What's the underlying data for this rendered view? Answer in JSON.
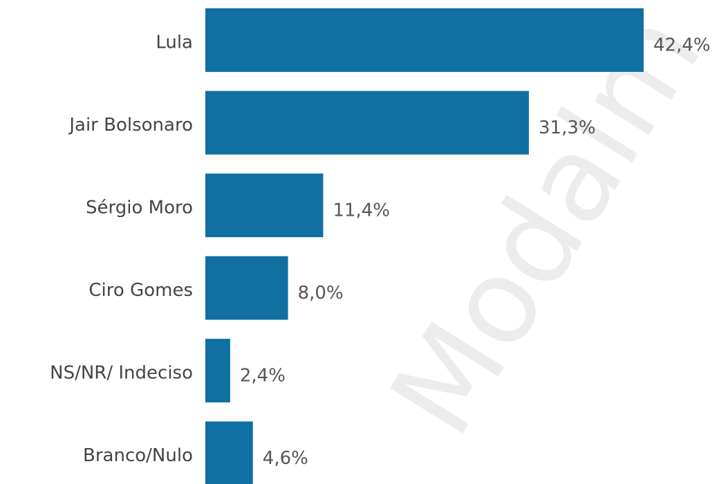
{
  "chart_data": {
    "type": "bar",
    "orientation": "horizontal",
    "categories": [
      "Lula",
      "Jair Bolsonaro",
      "Sérgio Moro",
      "Ciro Gomes",
      "NS/NR/ Indeciso",
      "Branco/Nulo"
    ],
    "values": [
      42.4,
      31.3,
      11.4,
      8.0,
      2.4,
      4.6
    ],
    "value_labels": [
      "42,4%",
      "31,3%",
      "11,4%",
      "8,0%",
      "2,4%",
      "4,6%"
    ],
    "color": "#1070a2",
    "annotations": [
      "Modalm"
    ]
  }
}
